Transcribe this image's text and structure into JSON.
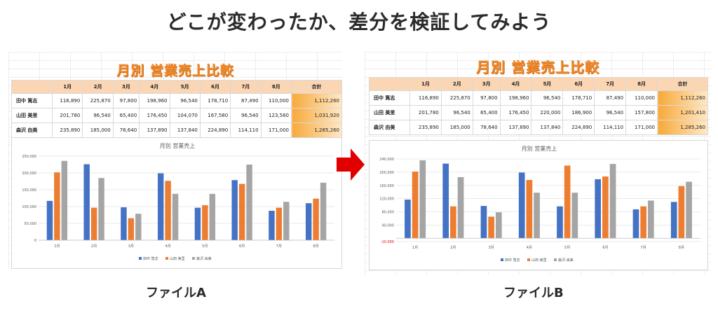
{
  "page_title": "どこが変わったか、差分を検証してみよう",
  "file_a": {
    "caption": "ファイルA",
    "sheet_title": "月別 営業売上比較",
    "headers": [
      "",
      "1月",
      "2月",
      "3月",
      "4月",
      "5月",
      "6月",
      "7月",
      "8月",
      "合計"
    ],
    "rows": [
      {
        "name": "田中 篤志",
        "values": [
          "116,890",
          "225,870",
          "97,800",
          "198,960",
          "96,540",
          "178,710",
          "87,490",
          "110,000"
        ],
        "total": "1,112,260"
      },
      {
        "name": "山田 美里",
        "values": [
          "201,780",
          "96,540",
          "65,400",
          "176,450",
          "104,070",
          "167,580",
          "96,540",
          "123,560"
        ],
        "total": "1,031,920"
      },
      {
        "name": "森沢 由美",
        "values": [
          "235,890",
          "185,000",
          "78,640",
          "137,890",
          "137,840",
          "224,890",
          "114,110",
          "171,000"
        ],
        "total": "1,285,260"
      }
    ]
  },
  "file_b": {
    "caption": "ファイルB",
    "sheet_title": "月別 営業売上比較",
    "headers": [
      "",
      "1月",
      "2月",
      "3月",
      "4月",
      "5月",
      "6月",
      "7月",
      "8月",
      "合計"
    ],
    "rows": [
      {
        "name": "田中 篤志",
        "values": [
          "116,890",
          "225,870",
          "97,800",
          "198,960",
          "96,540",
          "178,710",
          "87,490",
          "110,000"
        ],
        "total": "1,112,260"
      },
      {
        "name": "山田 美里",
        "values": [
          "201,780",
          "96,540",
          "65,400",
          "176,450",
          "220,000",
          "186,900",
          "96,540",
          "157,800"
        ],
        "total": "1,201,410"
      },
      {
        "name": "森沢 由美",
        "values": [
          "235,890",
          "185,000",
          "78,640",
          "137,890",
          "137,840",
          "224,890",
          "114,110",
          "171,000"
        ],
        "total": "1,285,260"
      }
    ]
  },
  "colors": {
    "series_1": "#4472c4",
    "series_2": "#ed7d31",
    "series_3": "#a5a5a5",
    "arrow": "#e00000",
    "title_orange": "#f08a2e"
  },
  "chart_data": [
    {
      "type": "bar",
      "title": "月別 営業売上",
      "categories": [
        "1月",
        "2月",
        "3月",
        "4月",
        "5月",
        "6月",
        "7月",
        "8月"
      ],
      "series": [
        {
          "name": "田中 篤志",
          "values": [
            116890,
            225870,
            97800,
            198960,
            96540,
            178710,
            87490,
            110000
          ]
        },
        {
          "name": "山田 美里",
          "values": [
            201780,
            96540,
            65400,
            176450,
            104070,
            167580,
            96540,
            123560
          ]
        },
        {
          "name": "森沢 由美",
          "values": [
            235890,
            185000,
            78640,
            137890,
            137840,
            224890,
            114110,
            171000
          ]
        }
      ],
      "ylim": [
        0,
        250000
      ],
      "yticks": [
        0,
        50000,
        100000,
        150000,
        200000,
        250000
      ],
      "ytick_labels": [
        "0",
        "50,000",
        "100,000",
        "150,000",
        "200,000",
        "250,000"
      ],
      "legend": "bottom",
      "grid": true
    },
    {
      "type": "bar",
      "title": "月別 営業売上",
      "categories": [
        "1月",
        "2月",
        "3月",
        "4月",
        "5月",
        "6月",
        "7月",
        "8月"
      ],
      "series": [
        {
          "name": "田中 篤志",
          "values": [
            116890,
            225870,
            97800,
            198960,
            96540,
            178710,
            87490,
            110000
          ]
        },
        {
          "name": "山田 美里",
          "values": [
            201780,
            96540,
            65400,
            176450,
            220000,
            186900,
            96540,
            157800
          ]
        },
        {
          "name": "森沢 由美",
          "values": [
            235890,
            185000,
            78640,
            137890,
            137840,
            224890,
            114110,
            171000
          ]
        }
      ],
      "ylim": [
        -10000,
        240000
      ],
      "yticks": [
        -10000,
        40000,
        80000,
        120000,
        160000,
        200000,
        240000
      ],
      "ytick_labels": [
        "-10,000",
        "40,000",
        "80,000",
        "120,000",
        "160,000",
        "200,000",
        "240,000"
      ],
      "legend": "bottom",
      "grid": true
    }
  ]
}
